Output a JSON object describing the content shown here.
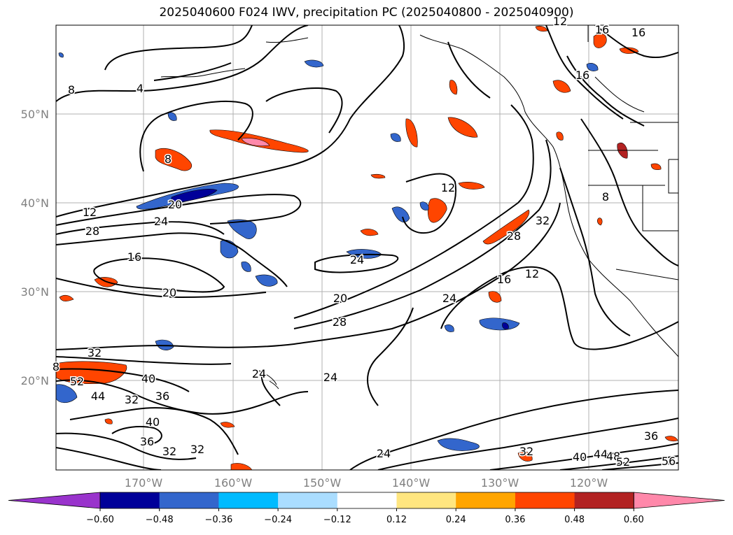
{
  "title": "2025040600 F024 IWV, precipitation PC (2025040800 - 2025040900)",
  "lat_labels": [
    "50°N",
    "40°N",
    "30°N",
    "20°N"
  ],
  "lon_labels": [
    "170°W",
    "160°W",
    "150°W",
    "140°W",
    "130°W",
    "120°W"
  ],
  "colorbar": {
    "ticks": [
      "−0.60",
      "−0.48",
      "−0.36",
      "−0.24",
      "−0.12",
      "0.12",
      "0.24",
      "0.36",
      "0.48",
      "0.60"
    ],
    "colors": [
      "#9933cc",
      "#000099",
      "#3366cc",
      "#00bbff",
      "#aaddff",
      "#ffffff",
      "#ffe680",
      "#ffa500",
      "#ff4500",
      "#b22222",
      "#ff88aa",
      "#ff88aa"
    ]
  },
  "contour_labels": [
    "8",
    "4",
    "8",
    "12",
    "28",
    "24",
    "20",
    "16",
    "20",
    "24",
    "20",
    "28",
    "32",
    "52",
    "44",
    "40",
    "36",
    "32",
    "40",
    "36",
    "32",
    "32",
    "24",
    "24",
    "24",
    "12",
    "28",
    "32",
    "16",
    "12",
    "24",
    "8",
    "16",
    "16",
    "12",
    "16",
    "8",
    "36",
    "40",
    "44",
    "48",
    "52",
    "56",
    "32"
  ]
}
